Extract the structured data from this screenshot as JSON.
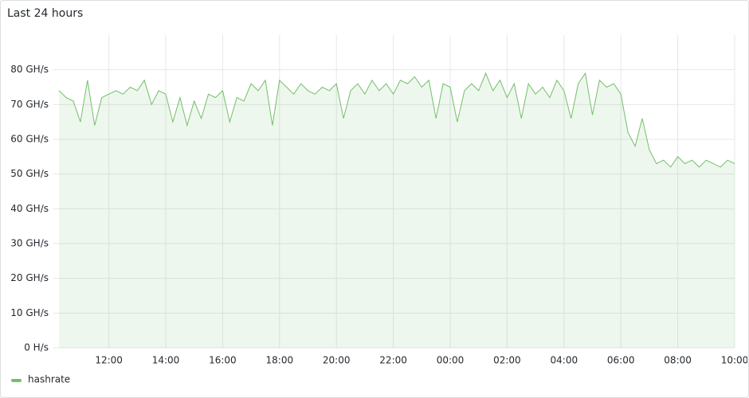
{
  "chart_data": {
    "type": "line",
    "title": "Last 24 hours",
    "x": [
      "10:15",
      "10:30",
      "10:45",
      "11:00",
      "11:15",
      "11:30",
      "11:45",
      "12:00",
      "12:15",
      "12:30",
      "12:45",
      "13:00",
      "13:15",
      "13:30",
      "13:45",
      "14:00",
      "14:15",
      "14:30",
      "14:45",
      "15:00",
      "15:15",
      "15:30",
      "15:45",
      "16:00",
      "16:15",
      "16:30",
      "16:45",
      "17:00",
      "17:15",
      "17:30",
      "17:45",
      "18:00",
      "18:15",
      "18:30",
      "18:45",
      "19:00",
      "19:15",
      "19:30",
      "19:45",
      "20:00",
      "20:15",
      "20:30",
      "20:45",
      "21:00",
      "21:15",
      "21:30",
      "21:45",
      "22:00",
      "22:15",
      "22:30",
      "22:45",
      "23:00",
      "23:15",
      "23:30",
      "23:45",
      "00:00",
      "00:15",
      "00:30",
      "00:45",
      "01:00",
      "01:15",
      "01:30",
      "01:45",
      "02:00",
      "02:15",
      "02:30",
      "02:45",
      "03:00",
      "03:15",
      "03:30",
      "03:45",
      "04:00",
      "04:15",
      "04:30",
      "04:45",
      "05:00",
      "05:15",
      "05:30",
      "05:45",
      "06:00",
      "06:15",
      "06:30",
      "06:45",
      "07:00",
      "07:15",
      "07:30",
      "07:45",
      "08:00",
      "08:15",
      "08:30",
      "08:45",
      "09:00",
      "09:15",
      "09:30",
      "09:45",
      "10:00"
    ],
    "series": [
      {
        "name": "hashrate",
        "color": "#73bf69",
        "values": [
          74,
          72,
          71,
          65,
          77,
          64,
          72,
          73,
          74,
          73,
          75,
          74,
          77,
          70,
          74,
          73,
          65,
          72,
          64,
          71,
          66,
          73,
          72,
          74,
          65,
          72,
          71,
          76,
          74,
          77,
          64,
          77,
          75,
          73,
          76,
          74,
          73,
          75,
          74,
          76,
          66,
          74,
          76,
          73,
          77,
          74,
          76,
          73,
          77,
          76,
          78,
          75,
          77,
          66,
          76,
          75,
          65,
          74,
          76,
          74,
          79,
          74,
          77,
          72,
          76,
          66,
          76,
          73,
          75,
          72,
          77,
          74,
          66,
          76,
          79,
          67,
          77,
          75,
          76,
          73,
          62,
          58,
          66,
          57,
          53,
          54,
          52,
          55,
          53,
          54,
          52,
          54,
          53,
          52,
          54,
          53
        ]
      }
    ],
    "xlim": [
      "10:03",
      "10:00"
    ],
    "xticks": [
      "12:00",
      "14:00",
      "16:00",
      "18:00",
      "20:00",
      "22:00",
      "00:00",
      "02:00",
      "04:00",
      "06:00",
      "08:00",
      "10:00"
    ],
    "ylim": [
      0,
      90
    ],
    "yticks": [
      {
        "value": 0,
        "label": "0 H/s"
      },
      {
        "value": 10,
        "label": "10 GH/s"
      },
      {
        "value": 20,
        "label": "20 GH/s"
      },
      {
        "value": 30,
        "label": "30 GH/s"
      },
      {
        "value": 40,
        "label": "40 GH/s"
      },
      {
        "value": 50,
        "label": "50 GH/s"
      },
      {
        "value": 60,
        "label": "60 GH/s"
      },
      {
        "value": 70,
        "label": "70 GH/s"
      },
      {
        "value": 80,
        "label": "80 GH/s"
      }
    ],
    "grid": true
  }
}
